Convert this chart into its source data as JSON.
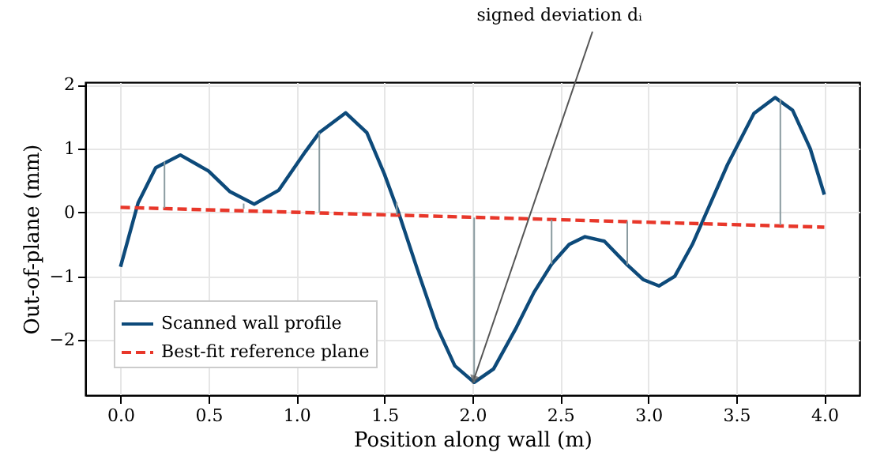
{
  "chart_data": {
    "type": "line",
    "xlabel": "Position along wall (m)",
    "ylabel": "Out-of-plane (mm)",
    "xlim": [
      -0.2,
      4.2
    ],
    "ylim": [
      -2.86,
      2.04
    ],
    "xticks": [
      {
        "value": 0,
        "label": "0.0"
      },
      {
        "value": 0.5,
        "label": "0.5"
      },
      {
        "value": 1,
        "label": "1.0"
      },
      {
        "value": 1.5,
        "label": "1.5"
      },
      {
        "value": 2,
        "label": "2.0"
      },
      {
        "value": 2.5,
        "label": "2.5"
      },
      {
        "value": 3,
        "label": "3.0"
      },
      {
        "value": 3.5,
        "label": "3.5"
      },
      {
        "value": 4,
        "label": "4.0"
      }
    ],
    "yticks": [
      -2,
      -1,
      0,
      1,
      2
    ],
    "grid": true,
    "legend": "bottom left",
    "marker": "none",
    "series": [
      {
        "type": "bar",
        "color": "#8a9ba0",
        "x": [
          0.25,
          0.7,
          1.13,
          1.57,
          2.01,
          2.45,
          2.88,
          3.75
        ],
        "base": [
          0.07,
          0.06,
          0.0,
          -0.04,
          -0.08,
          -0.11,
          -0.14,
          -0.2
        ],
        "values": [
          0.73,
          0.08,
          1.25,
          0.2,
          -2.58,
          -0.7,
          -0.68,
          1.98
        ]
      },
      {
        "name": "Scanned wall profile",
        "color": "#0d4a7a",
        "line_style": "solid",
        "x": [
          0,
          0.05,
          0.1,
          0.2,
          0.34,
          0.5,
          0.62,
          0.76,
          0.9,
          1.05,
          1.13,
          1.28,
          1.4,
          1.5,
          1.58,
          1.7,
          1.8,
          1.9,
          2.01,
          2.12,
          2.25,
          2.35,
          2.45,
          2.55,
          2.64,
          2.75,
          2.88,
          2.97,
          3.06,
          3.15,
          3.25,
          3.33,
          3.45,
          3.6,
          3.72,
          3.82,
          3.92,
          4.0
        ],
        "values": [
          -0.85,
          -0.35,
          0.15,
          0.7,
          0.9,
          0.65,
          0.33,
          0.13,
          0.35,
          0.95,
          1.25,
          1.56,
          1.25,
          0.6,
          0.0,
          -1.0,
          -1.8,
          -2.4,
          -2.66,
          -2.45,
          -1.8,
          -1.25,
          -0.81,
          -0.5,
          -0.38,
          -0.45,
          -0.82,
          -1.05,
          -1.15,
          -1.0,
          -0.5,
          0.0,
          0.75,
          1.55,
          1.8,
          1.6,
          1.0,
          0.28
        ]
      },
      {
        "name": "Best-fit reference plane",
        "color": "#e8372a",
        "line_style": "dashed",
        "x": [
          0,
          4
        ],
        "values": [
          0.08,
          -0.23
        ]
      }
    ],
    "annotations": [
      {
        "text": "signed deviation dᵢ",
        "x": 2.01,
        "y": -2.6
      }
    ]
  }
}
